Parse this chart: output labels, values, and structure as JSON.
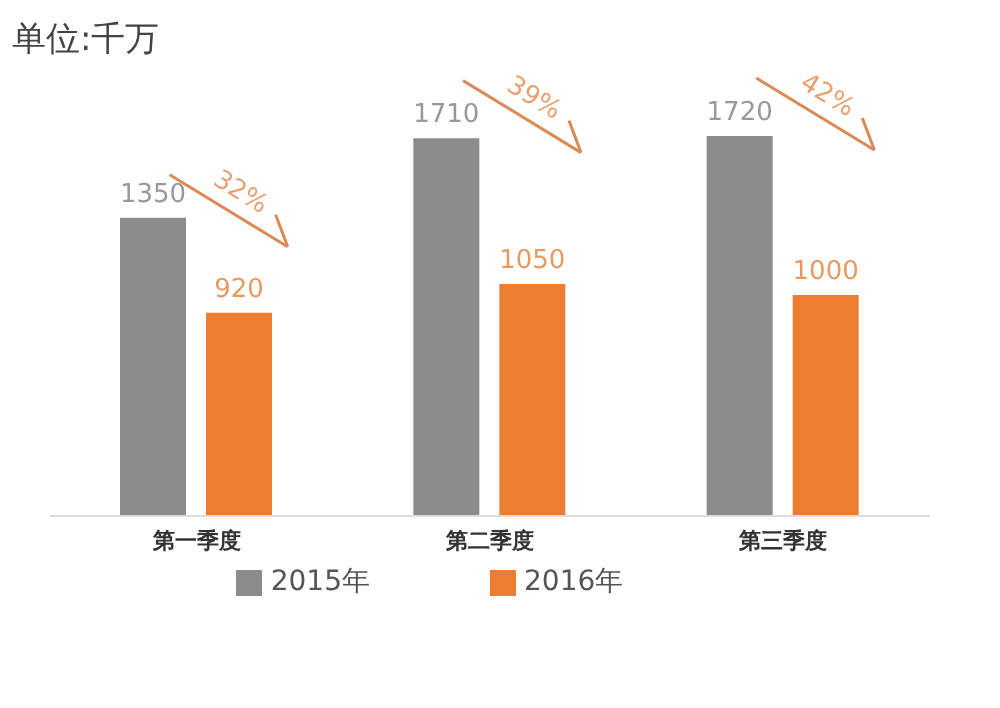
{
  "chart_data": {
    "type": "bar",
    "title": "单位:千万",
    "categories": [
      "第一季度",
      "第二季度",
      "第三季度"
    ],
    "series": [
      {
        "name": "2015年",
        "color": "#8c8c8c",
        "values": [
          1350,
          1710,
          1720
        ]
      },
      {
        "name": "2016年",
        "color": "#ed7d31",
        "values": [
          920,
          1050,
          1000
        ]
      }
    ],
    "data_labels": true,
    "legend": "bottom",
    "annotations": [
      "32%",
      "39%",
      "42%"
    ]
  }
}
